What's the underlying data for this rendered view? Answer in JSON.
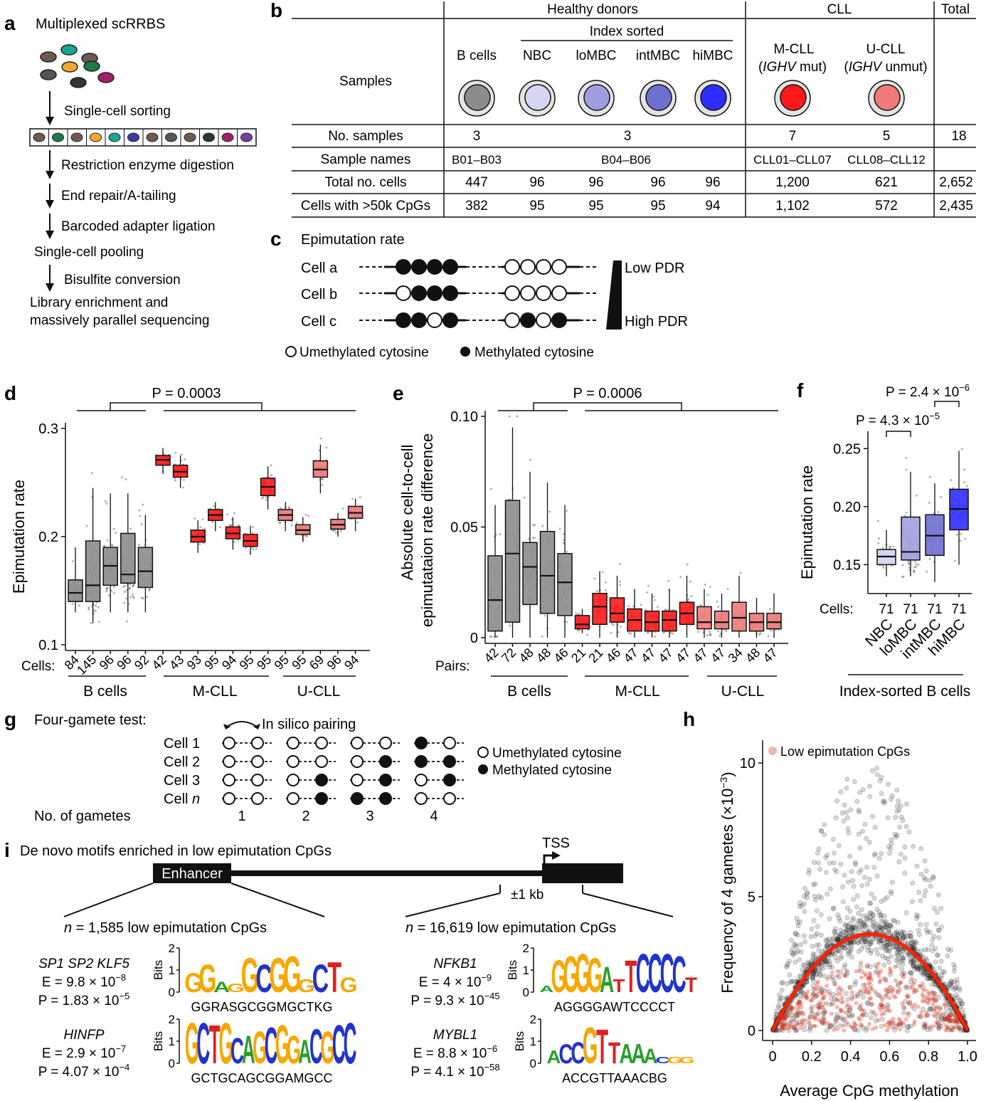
{
  "panel_labels": [
    "a",
    "b",
    "c",
    "d",
    "e",
    "f",
    "g",
    "h",
    "i"
  ],
  "panel_a": {
    "title": "Multiplexed scRRBS",
    "steps": [
      "Single-cell sorting",
      "Restriction enzyme digestion",
      "End repair/A-tailing",
      "Barcoded adapter ligation",
      "Single-cell pooling",
      "Bisulfite conversion",
      "Library enrichment and",
      "massively parallel sequencing"
    ]
  },
  "panel_b": {
    "groups": {
      "healthy": "Healthy donors",
      "cll": "CLL",
      "total": "Total",
      "index_sorted": "Index sorted"
    },
    "row_header": "Samples",
    "columns": [
      "B cells",
      "NBC",
      "loMBC",
      "intMBC",
      "hiMBC"
    ],
    "cll_columns": [
      {
        "name": "M-CLL",
        "sub_italic": "IGHV",
        "sub": " mut)"
      },
      {
        "name": "U-CLL",
        "sub_italic": "IGHV",
        "sub": " unmut)"
      }
    ],
    "colors": [
      "#8c8c8c",
      "#d6d6f2",
      "#9f9fe0",
      "#6f6fd0",
      "#2d2dff",
      "#ff1a1a",
      "#f07b7b"
    ],
    "rows": [
      {
        "label": "No.  samples",
        "cells": [
          "3",
          "3",
          "7",
          "5",
          "18"
        ]
      },
      {
        "label": "Sample names",
        "cells": [
          "B01–B03",
          "B04–B06",
          "CLL01–CLL07",
          "CLL08–CLL12"
        ]
      },
      {
        "label": "Total no. cells",
        "cells": [
          "447",
          "96",
          "96",
          "96",
          "96",
          "1,200",
          "621",
          "2,652"
        ]
      },
      {
        "label": "Cells with >50k CpGs",
        "cells": [
          "382",
          "95",
          "95",
          "95",
          "94",
          "1,102",
          "572",
          "2,435"
        ]
      }
    ]
  },
  "panel_c": {
    "title": "Epimutation rate",
    "cells": [
      "Cell a",
      "Cell b",
      "Cell c"
    ],
    "patterns": [
      [
        1,
        1,
        1,
        1,
        0,
        0,
        0,
        0
      ],
      [
        0,
        1,
        1,
        1,
        0,
        0,
        0,
        0
      ],
      [
        1,
        1,
        0,
        1,
        0,
        1,
        0,
        1
      ]
    ],
    "low": "Low PDR",
    "high": "High PDR",
    "legend_unmeth": "Umethylated cytosine",
    "legend_meth": "Methylated cytosine"
  },
  "panel_d": {
    "chart_data": {
      "type": "box",
      "ylabel": "Epimutation rate",
      "ylim": [
        0.1,
        0.3
      ],
      "yticks": [
        "0.1",
        "0.2",
        "0.3"
      ],
      "pvalue": "P = 0.0003",
      "xprefix": "Cells:",
      "cells": [
        "84",
        "145",
        "96",
        "96",
        "92",
        "42",
        "43",
        "93",
        "95",
        "94",
        "95",
        "95",
        "95",
        "95",
        "69",
        "96",
        "94"
      ],
      "groups": [
        "B cells",
        "M-CLL",
        "U-CLL"
      ],
      "boxes": [
        {
          "color": "#8c8c8c",
          "q1": 0.14,
          "med": 0.148,
          "q3": 0.16,
          "lo": 0.13,
          "hi": 0.19
        },
        {
          "color": "#8c8c8c",
          "q1": 0.14,
          "med": 0.155,
          "q3": 0.196,
          "lo": 0.12,
          "hi": 0.245
        },
        {
          "color": "#8c8c8c",
          "q1": 0.155,
          "med": 0.173,
          "q3": 0.19,
          "lo": 0.13,
          "hi": 0.24
        },
        {
          "color": "#8c8c8c",
          "q1": 0.157,
          "med": 0.165,
          "q3": 0.203,
          "lo": 0.13,
          "hi": 0.24
        },
        {
          "color": "#8c8c8c",
          "q1": 0.153,
          "med": 0.168,
          "q3": 0.19,
          "lo": 0.13,
          "hi": 0.22
        },
        {
          "color": "#ff1a1a",
          "q1": 0.266,
          "med": 0.271,
          "q3": 0.275,
          "lo": 0.258,
          "hi": 0.282
        },
        {
          "color": "#ff1a1a",
          "q1": 0.255,
          "med": 0.26,
          "q3": 0.266,
          "lo": 0.245,
          "hi": 0.275
        },
        {
          "color": "#ff1a1a",
          "q1": 0.195,
          "med": 0.2,
          "q3": 0.206,
          "lo": 0.185,
          "hi": 0.215
        },
        {
          "color": "#ff1a1a",
          "q1": 0.215,
          "med": 0.22,
          "q3": 0.225,
          "lo": 0.205,
          "hi": 0.232
        },
        {
          "color": "#ff1a1a",
          "q1": 0.198,
          "med": 0.203,
          "q3": 0.209,
          "lo": 0.188,
          "hi": 0.218
        },
        {
          "color": "#ff1a1a",
          "q1": 0.191,
          "med": 0.196,
          "q3": 0.202,
          "lo": 0.183,
          "hi": 0.21
        },
        {
          "color": "#ff1a1a",
          "q1": 0.238,
          "med": 0.246,
          "q3": 0.254,
          "lo": 0.225,
          "hi": 0.265
        },
        {
          "color": "#f07b7b",
          "q1": 0.215,
          "med": 0.22,
          "q3": 0.225,
          "lo": 0.205,
          "hi": 0.232
        },
        {
          "color": "#f07b7b",
          "q1": 0.202,
          "med": 0.206,
          "q3": 0.211,
          "lo": 0.195,
          "hi": 0.218
        },
        {
          "color": "#f07b7b",
          "q1": 0.255,
          "med": 0.262,
          "q3": 0.27,
          "lo": 0.24,
          "hi": 0.285
        },
        {
          "color": "#f07b7b",
          "q1": 0.207,
          "med": 0.211,
          "q3": 0.216,
          "lo": 0.2,
          "hi": 0.222
        },
        {
          "color": "#f07b7b",
          "q1": 0.217,
          "med": 0.222,
          "q3": 0.228,
          "lo": 0.205,
          "hi": 0.235
        }
      ]
    }
  },
  "panel_e": {
    "chart_data": {
      "type": "box",
      "ylabel1": "Absolute cell-to-cell",
      "ylabel2": "epimutataion rate difference",
      "ylim": [
        0,
        0.1
      ],
      "yticks": [
        "0",
        "0.05",
        "0.10"
      ],
      "pvalue": "P = 0.0006",
      "xprefix": "Pairs:",
      "pairs": [
        "42",
        "72",
        "48",
        "48",
        "46",
        "21",
        "21",
        "46",
        "47",
        "47",
        "47",
        "47",
        "47",
        "47",
        "34",
        "48",
        "47"
      ],
      "groups": [
        "B cells",
        "M-CLL",
        "U-CLL"
      ],
      "boxes": [
        {
          "color": "#8c8c8c",
          "q1": 0.003,
          "med": 0.017,
          "q3": 0.037,
          "lo": 0,
          "hi": 0.06
        },
        {
          "color": "#8c8c8c",
          "q1": 0.007,
          "med": 0.038,
          "q3": 0.062,
          "lo": 0,
          "hi": 0.095
        },
        {
          "color": "#8c8c8c",
          "q1": 0.015,
          "med": 0.032,
          "q3": 0.043,
          "lo": 0,
          "hi": 0.075
        },
        {
          "color": "#8c8c8c",
          "q1": 0.011,
          "med": 0.028,
          "q3": 0.048,
          "lo": 0,
          "hi": 0.07
        },
        {
          "color": "#8c8c8c",
          "q1": 0.01,
          "med": 0.025,
          "q3": 0.038,
          "lo": 0,
          "hi": 0.06
        },
        {
          "color": "#ff1a1a",
          "q1": 0.004,
          "med": 0.006,
          "q3": 0.01,
          "lo": 0.002,
          "hi": 0.013
        },
        {
          "color": "#ff1a1a",
          "q1": 0.006,
          "med": 0.014,
          "q3": 0.02,
          "lo": 0,
          "hi": 0.03
        },
        {
          "color": "#ff1a1a",
          "q1": 0.007,
          "med": 0.011,
          "q3": 0.018,
          "lo": 0,
          "hi": 0.028
        },
        {
          "color": "#ff1a1a",
          "q1": 0.003,
          "med": 0.008,
          "q3": 0.013,
          "lo": 0,
          "hi": 0.022
        },
        {
          "color": "#ff1a1a",
          "q1": 0.003,
          "med": 0.007,
          "q3": 0.012,
          "lo": 0,
          "hi": 0.02
        },
        {
          "color": "#ff1a1a",
          "q1": 0.003,
          "med": 0.008,
          "q3": 0.012,
          "lo": 0,
          "hi": 0.022
        },
        {
          "color": "#ff1a1a",
          "q1": 0.006,
          "med": 0.011,
          "q3": 0.016,
          "lo": 0,
          "hi": 0.028
        },
        {
          "color": "#f07b7b",
          "q1": 0.004,
          "med": 0.007,
          "q3": 0.014,
          "lo": 0,
          "hi": 0.022
        },
        {
          "color": "#f07b7b",
          "q1": 0.004,
          "med": 0.007,
          "q3": 0.012,
          "lo": 0,
          "hi": 0.02
        },
        {
          "color": "#f07b7b",
          "q1": 0.003,
          "med": 0.009,
          "q3": 0.016,
          "lo": 0,
          "hi": 0.028
        },
        {
          "color": "#f07b7b",
          "q1": 0.003,
          "med": 0.007,
          "q3": 0.011,
          "lo": 0,
          "hi": 0.018
        },
        {
          "color": "#f07b7b",
          "q1": 0.004,
          "med": 0.007,
          "q3": 0.011,
          "lo": 0,
          "hi": 0.02
        }
      ]
    }
  },
  "panel_f": {
    "chart_data": {
      "type": "box",
      "ylabel": "Epimutation rate",
      "ylim": [
        0.13,
        0.26
      ],
      "yticks": [
        "0.15",
        "0.20",
        "0.25"
      ],
      "p1": "P = 4.3 × 10",
      "p1exp": "−5",
      "p2": "P = 2.4 × 10",
      "p2exp": "−6",
      "xprefix": "Cells:",
      "cells": [
        "71",
        "71",
        "71",
        "71"
      ],
      "categories": [
        "NBC",
        "loMBC",
        "intMBC",
        "hiMBC"
      ],
      "group": "Index-sorted B cells",
      "boxes": [
        {
          "color": "#d6d6f2",
          "q1": 0.15,
          "med": 0.157,
          "q3": 0.163,
          "lo": 0.14,
          "hi": 0.18
        },
        {
          "color": "#9f9fe0",
          "q1": 0.154,
          "med": 0.161,
          "q3": 0.191,
          "lo": 0.14,
          "hi": 0.23
        },
        {
          "color": "#6f6fd0",
          "q1": 0.158,
          "med": 0.175,
          "q3": 0.193,
          "lo": 0.135,
          "hi": 0.22
        },
        {
          "color": "#2d2dff",
          "q1": 0.18,
          "med": 0.198,
          "q3": 0.215,
          "lo": 0.15,
          "hi": 0.248
        }
      ]
    }
  },
  "panel_g": {
    "title": "Four-gamete test:",
    "pairing": "In silico pairing",
    "cells": [
      "Cell 1",
      "Cell 2",
      "Cell 3",
      "Cell "
    ],
    "cell_n": "n",
    "gametes_label": "No. of gametes",
    "gametes": [
      "1",
      "2",
      "3",
      "4"
    ],
    "patterns": [
      [
        [
          0,
          0
        ],
        [
          0,
          0
        ],
        [
          0,
          0
        ],
        [
          0,
          0
        ]
      ],
      [
        [
          0,
          0
        ],
        [
          0,
          0
        ],
        [
          0,
          1
        ],
        [
          0,
          1
        ]
      ],
      [
        [
          0,
          0
        ],
        [
          0,
          1
        ],
        [
          0,
          1
        ],
        [
          1,
          1
        ]
      ],
      [
        [
          1,
          0
        ],
        [
          1,
          1
        ],
        [
          0,
          1
        ],
        [
          0,
          0
        ]
      ]
    ],
    "legend_unmeth": "Umethylated cytosine",
    "legend_meth": "Methylated cytosine"
  },
  "panel_h": {
    "chart_data": {
      "type": "scatter",
      "xlabel": "Average CpG methylation",
      "ylabel": "Frequency of 4 gametes (×10",
      "ylabel_exp": "−3",
      "ylabel_close": ")",
      "xlim": [
        0,
        1
      ],
      "ylim": [
        0,
        10
      ],
      "xticks": [
        "0",
        "0.2",
        "0.4",
        "0.6",
        "0.8",
        "1.0"
      ],
      "yticks": [
        "0",
        "5",
        "10"
      ],
      "legend": "Low epimutation CpGs",
      "fit_peak": 3.6,
      "fit_peak_x": 0.5
    }
  },
  "panel_i": {
    "title": "De novo motifs enriched in low epimutation CpGs",
    "enhancer": "Enhancer",
    "tss": "TSS",
    "kb": "±1 kb",
    "left_n": "n",
    "left_count": " = 1,585 low epimutation CpGs",
    "right_n": "n",
    "right_count": " = 16,619 low epimutation CpGs",
    "motifs": [
      {
        "name": "SP1 SP2 KLF5",
        "E": "E = 9.8 × 10",
        "Eexp": "−8",
        "P": "P = 1.83 × 10",
        "Pexp": "−5",
        "seq": "GGRASGCGGMGCTKG",
        "logo": "GGAGGCGGGCTG"
      },
      {
        "name": "HINFP",
        "E": "E = 2.9 × 10",
        "Eexp": "−7",
        "P": "P = 4.07 × 10",
        "Pexp": "−4",
        "seq": "GCTGCAGCGGAMGCC",
        "logo": "GCTGCAGCGGACGCC"
      },
      {
        "name": "NFKB1",
        "E": "E = 4 × 10",
        "Eexp": "−9",
        "P": "P = 9.3 × 10",
        "Pexp": "−45",
        "seq": "AGGGGAWTCCCCT",
        "logo": "AGGGGATTCCCCT"
      },
      {
        "name": "MYBL1",
        "E": "E = 8.8 × 10",
        "Eexp": "−6",
        "P": "P = 4.1 × 10",
        "Pexp": "−58",
        "seq": "ACCGTTAAACBG",
        "logo": "ACCGTTAAACGG"
      }
    ],
    "bits": "Bits",
    "ticks": [
      "0",
      "1",
      "2"
    ]
  }
}
